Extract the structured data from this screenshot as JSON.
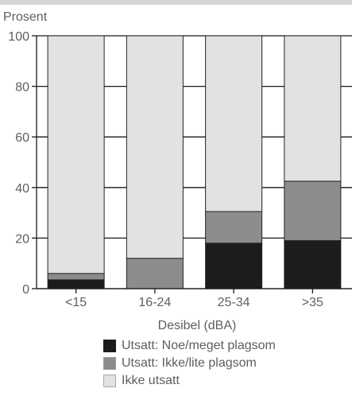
{
  "chart_data": {
    "type": "bar",
    "stacked": true,
    "ylabel": "Prosent",
    "xlabel": "Desibel (dBA)",
    "ylim": [
      0,
      100
    ],
    "yticks": [
      "0",
      "20",
      "40",
      "60",
      "80",
      "100"
    ],
    "categories": [
      "<15",
      "16-24",
      "25-34",
      ">35"
    ],
    "series": [
      {
        "name": "Utsatt: Noe/meget plagsom",
        "values": [
          3.5,
          0,
          18,
          19
        ],
        "color": "#1c1c1c"
      },
      {
        "name": "Utsatt: Ikke/lite plagsom",
        "values": [
          2.5,
          12,
          12.5,
          23.5
        ],
        "color": "#8c8c8c"
      },
      {
        "name": "Ikke utsatt",
        "values": [
          94,
          88,
          69.5,
          57.5
        ],
        "color": "#e2e2e2"
      }
    ],
    "grid": true,
    "legend_position": "bottom"
  }
}
